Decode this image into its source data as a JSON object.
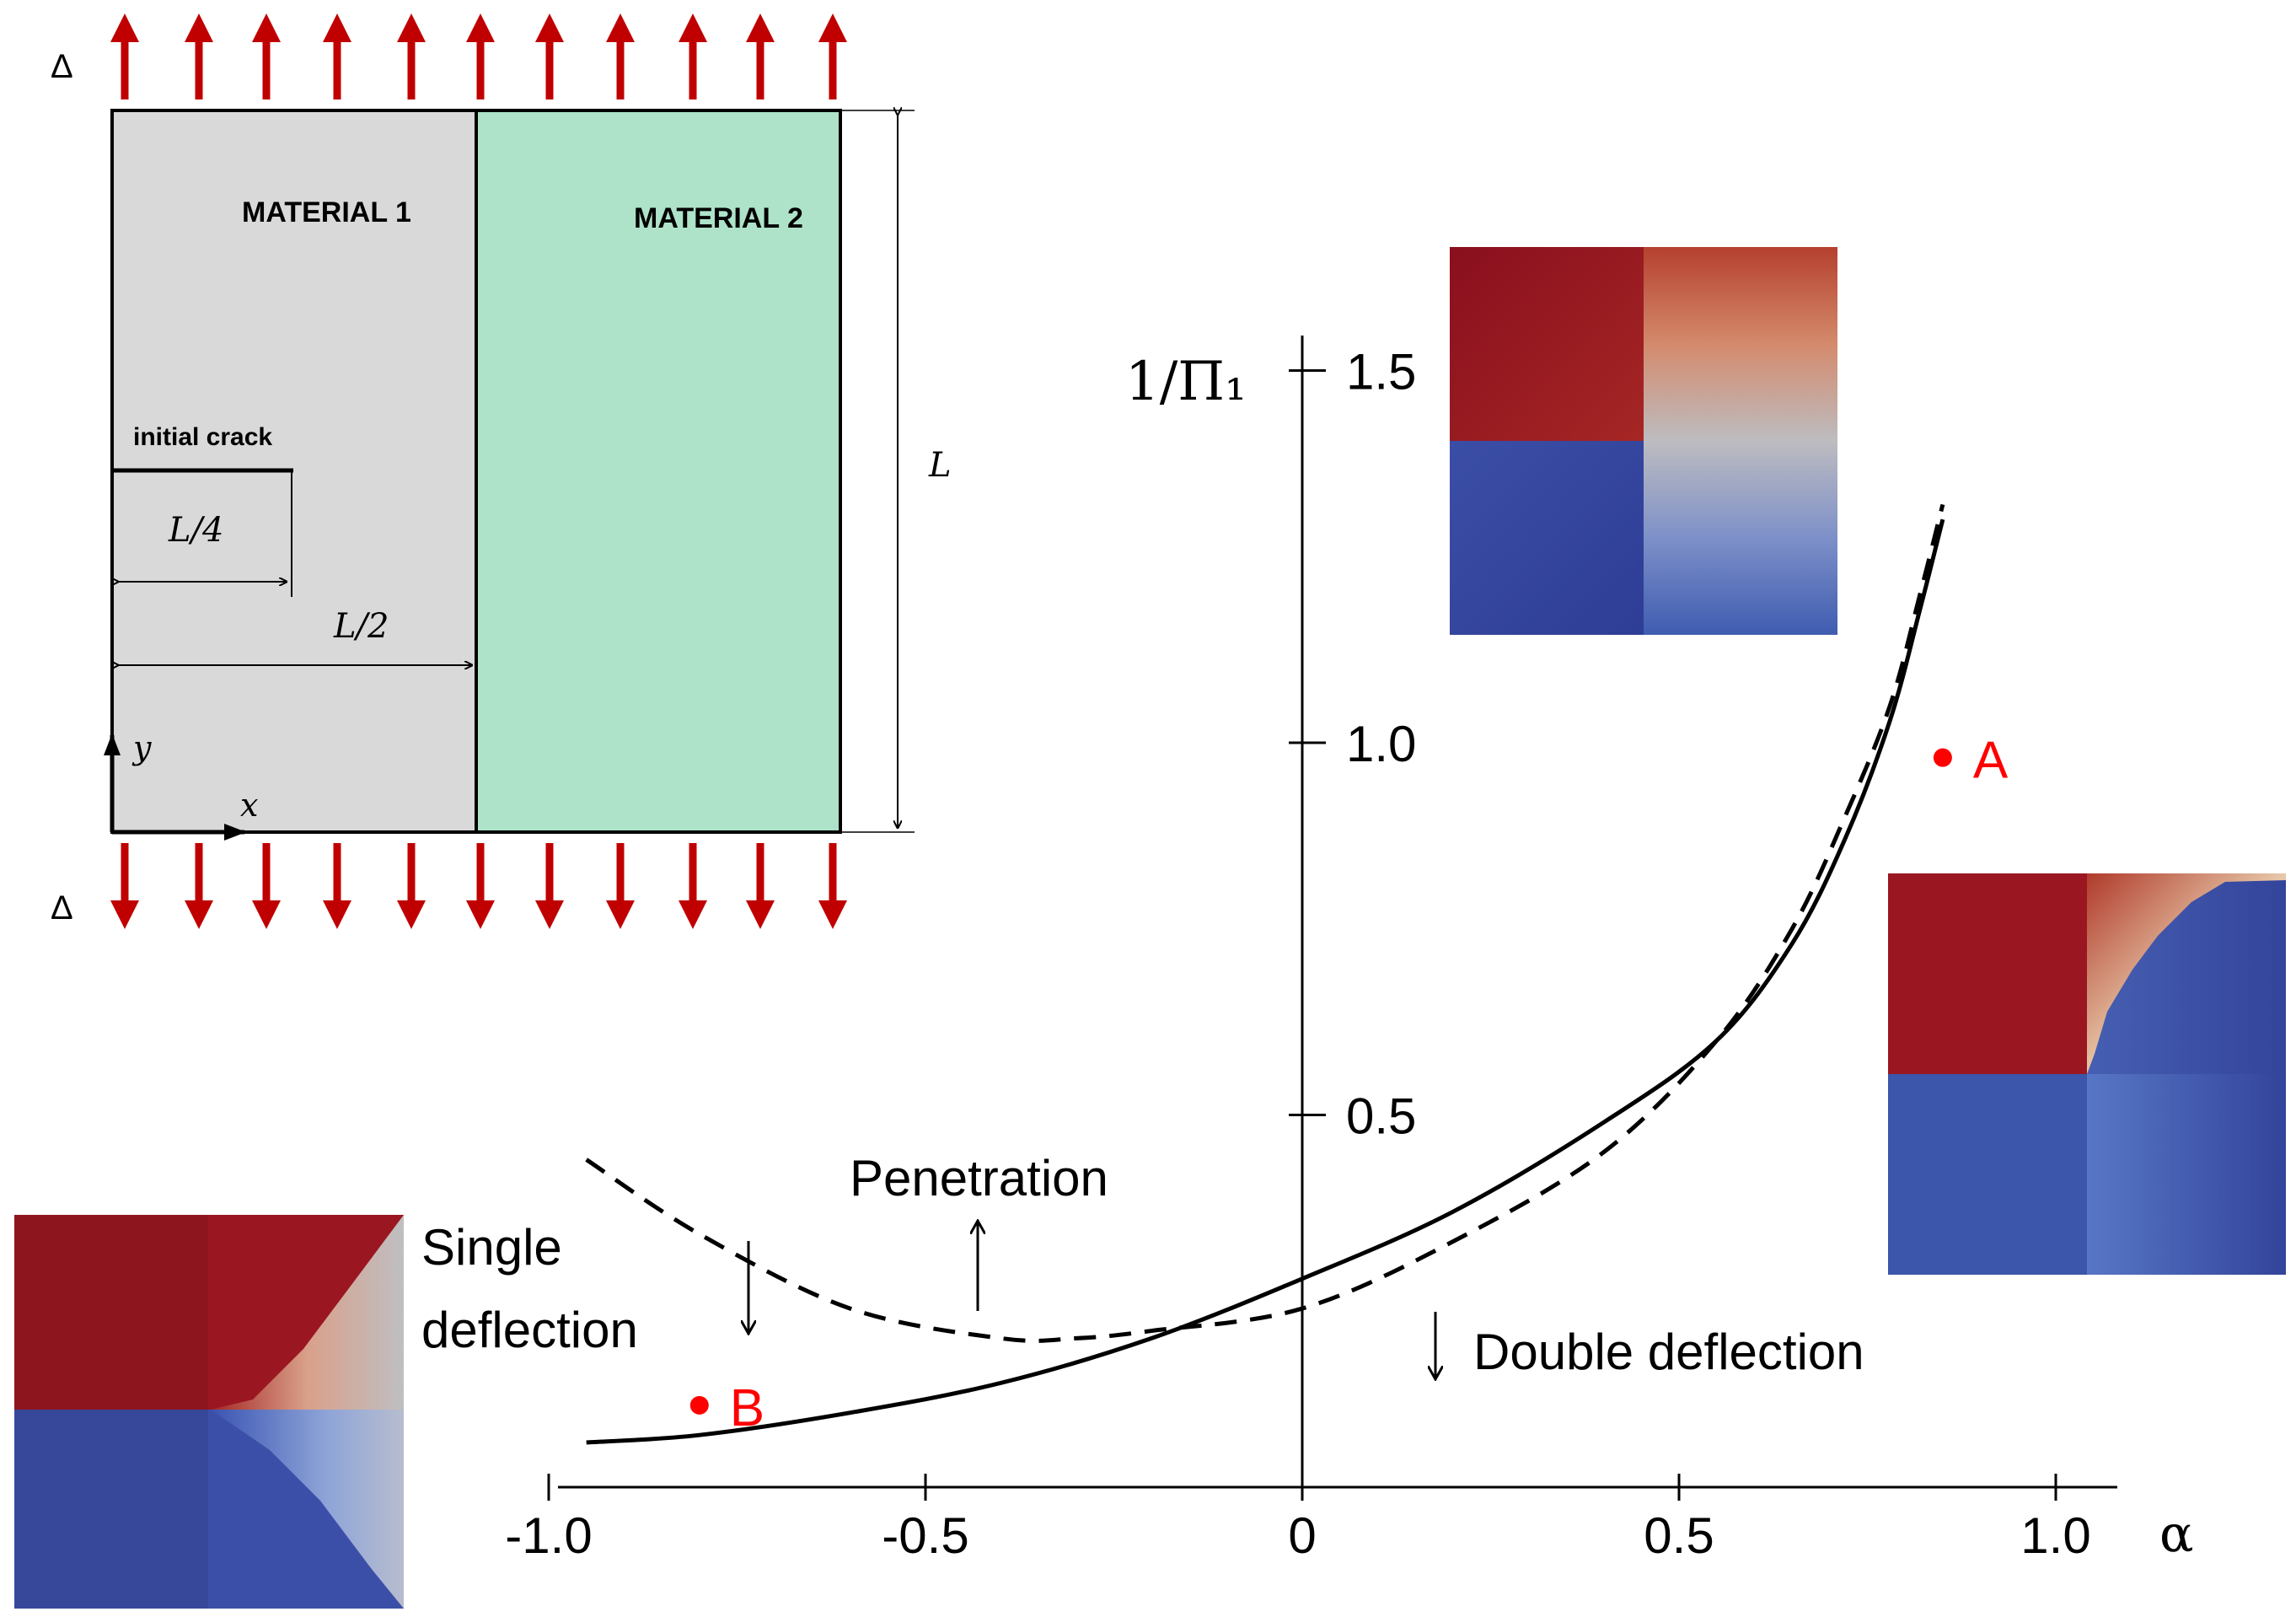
{
  "schematic": {
    "load_label_top": "Δ",
    "load_label_bottom": "Δ",
    "material1_label": "MATERIAL 1",
    "material2_label": "MATERIAL 2",
    "crack_label": "initial crack",
    "dim_crack": "L/4",
    "dim_half": "L/2",
    "dim_height": "L",
    "axis_x": "x",
    "axis_y": "y",
    "colors": {
      "material1": "#d9d9d9",
      "material2": "#aee3c9",
      "load_arrow": "#c00000"
    }
  },
  "chart_data": {
    "type": "line",
    "title": "",
    "xlabel": "α",
    "ylabel": "1/Π₁",
    "xlim": [
      -1.0,
      1.0
    ],
    "ylim": [
      0,
      1.5
    ],
    "x_ticks": [
      -1.0,
      -0.5,
      0,
      0.5,
      1.0
    ],
    "x_tick_labels": [
      "-1.0",
      "-0.5",
      "0",
      "0.5",
      "1.0"
    ],
    "y_ticks": [
      0.5,
      1.0,
      1.5
    ],
    "y_tick_labels": [
      "0.5",
      "1.0",
      "1.5"
    ],
    "series": [
      {
        "name": "double deflection boundary",
        "style": "solid",
        "x": [
          -0.95,
          -0.8,
          -0.6,
          -0.4,
          -0.2,
          0.0,
          0.2,
          0.4,
          0.55,
          0.65,
          0.72,
          0.78,
          0.82,
          0.85
        ],
        "y": [
          0.06,
          0.07,
          0.1,
          0.14,
          0.2,
          0.28,
          0.37,
          0.49,
          0.6,
          0.73,
          0.87,
          1.03,
          1.18,
          1.3
        ]
      },
      {
        "name": "penetration boundary",
        "style": "dashed",
        "x": [
          -0.95,
          -0.8,
          -0.6,
          -0.4,
          -0.3,
          -0.2,
          0.0,
          0.2,
          0.4,
          0.55,
          0.65,
          0.72,
          0.78,
          0.82,
          0.85
        ],
        "y": [
          0.44,
          0.34,
          0.24,
          0.2,
          0.2,
          0.21,
          0.24,
          0.33,
          0.45,
          0.6,
          0.75,
          0.9,
          1.05,
          1.2,
          1.32
        ]
      }
    ],
    "points": [
      {
        "label": "A",
        "x": 0.85,
        "y": 0.98
      },
      {
        "label": "B",
        "x": -0.8,
        "y": 0.11
      }
    ],
    "region_labels": {
      "penetration": "Penetration",
      "single_line1": "Single",
      "single_line2": "deflection",
      "double": "Double deflection"
    },
    "point_color": "#ff0000"
  }
}
